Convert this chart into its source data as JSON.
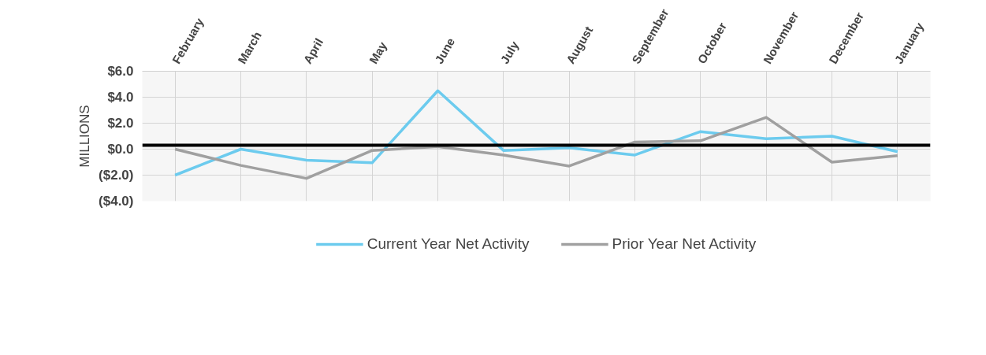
{
  "chart_data": {
    "type": "line",
    "ylabel": "MILLIONS",
    "categories": [
      "February",
      "March",
      "April",
      "May",
      "June",
      "July",
      "August",
      "September",
      "October",
      "November",
      "December",
      "January"
    ],
    "series": [
      {
        "name": "Current Year Net Activity",
        "color": "#6ccbee",
        "values": [
          -2.0,
          0.0,
          -0.85,
          -1.05,
          4.5,
          -0.1,
          0.1,
          -0.45,
          1.35,
          0.8,
          1.0,
          -0.2
        ]
      },
      {
        "name": "Prior Year Net Activity",
        "color": "#a0a0a0",
        "values": [
          0.0,
          -1.25,
          -2.25,
          -0.1,
          0.2,
          -0.45,
          -1.3,
          0.55,
          0.65,
          2.45,
          -1.0,
          -0.5
        ]
      }
    ],
    "ylim": [
      -4,
      6
    ],
    "yticks": [
      {
        "value": 6,
        "label": "$6.0"
      },
      {
        "value": 4,
        "label": "$4.0"
      },
      {
        "value": 2,
        "label": "$2.0"
      },
      {
        "value": 0,
        "label": "$0.0"
      },
      {
        "value": -2,
        "label": "($2.0)"
      },
      {
        "value": -4,
        "label": "($4.0)"
      }
    ],
    "ref_lines": [
      {
        "axis": "y",
        "value": 0.3,
        "color": "#000000"
      }
    ],
    "grid": true,
    "legend": "bottom",
    "marker": "none",
    "line_style": "solid"
  }
}
